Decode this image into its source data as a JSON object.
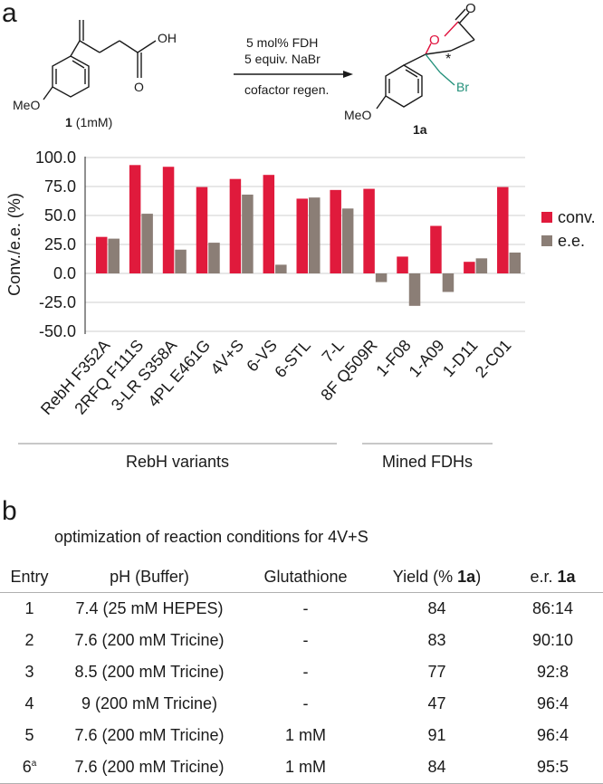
{
  "panel_a": {
    "label": "a",
    "scheme": {
      "substrate_name": "1",
      "substrate_conc": "(1mM)",
      "substrate_groups": {
        "oh": "OH",
        "meo": "MeO",
        "o": "O"
      },
      "product_name": "1a",
      "product_groups": {
        "meo": "MeO",
        "ring_o": "O",
        "carbonyl_o": "O",
        "br": "Br",
        "stereo": "*"
      },
      "conditions": [
        "5 mol% FDH",
        "5 equiv. NaBr",
        "cofactor regen."
      ],
      "colors": {
        "ring_oxygen": "#e0113c",
        "bromomethyl": "#23907a"
      }
    }
  },
  "chart_data": {
    "type": "bar",
    "categories": [
      "RebH F352A",
      "2RFQ F111S",
      "3-LR S358A",
      "4PL E461G",
      "4V+S",
      "6-VS",
      "6-STL",
      "7-L",
      "8F Q509R",
      "1-F08",
      "1-A09",
      "1-D11",
      "2-C01"
    ],
    "series": [
      {
        "name": "conv.",
        "color": "#e01a3c",
        "values": [
          31.5,
          93.5,
          92,
          74.5,
          81.5,
          85,
          64.5,
          72,
          73,
          14.5,
          41,
          10,
          74.5
        ]
      },
      {
        "name": "e.e.",
        "color": "#8b7e76",
        "values": [
          30,
          51.5,
          20.5,
          26.5,
          68,
          7.5,
          65.5,
          56,
          -7.5,
          -28,
          -16,
          13,
          18
        ]
      }
    ],
    "ylabel": "Conv./e.e. (%)",
    "ylim": [
      -50,
      100
    ],
    "yticks": [
      "100.0",
      "75.0",
      "50.0",
      "25.0",
      "0.0",
      "-25.0",
      "-50.0"
    ],
    "grid": true,
    "legend_position": "right",
    "groups": [
      {
        "label": "RebH variants",
        "categories": [
          "RebH F352A",
          "2RFQ F111S",
          "3-LR S358A",
          "4PL E461G",
          "4V+S",
          "6-VS",
          "6-STL",
          "7-L"
        ]
      },
      {
        "label": "Mined FDHs",
        "categories": [
          "1-F08",
          "1-A09",
          "1-D11",
          "2-C01"
        ]
      }
    ]
  },
  "panel_b": {
    "label": "b",
    "title": "optimization of reaction conditions for 4V+S",
    "headers": {
      "entry": "Entry",
      "ph": "pH (Buffer)",
      "glutathione": "Glutathione",
      "yield_prefix": "Yield (% ",
      "yield_bold": "1a",
      "yield_suffix": ")",
      "er_prefix": "e.r. ",
      "er_bold": "1a"
    },
    "rows": [
      {
        "entry": "1",
        "sup": "",
        "ph": "7.4 (25 mM HEPES)",
        "glutathione": "-",
        "yield": "84",
        "er": "86:14"
      },
      {
        "entry": "2",
        "sup": "",
        "ph": "7.6 (200 mM Tricine)",
        "glutathione": "-",
        "yield": "83",
        "er": "90:10"
      },
      {
        "entry": "3",
        "sup": "",
        "ph": "8.5 (200 mM Tricine)",
        "glutathione": "-",
        "yield": "77",
        "er": "92:8"
      },
      {
        "entry": "4",
        "sup": "",
        "ph": "9 (200 mM Tricine)",
        "glutathione": "-",
        "yield": "47",
        "er": "96:4"
      },
      {
        "entry": "5",
        "sup": "",
        "ph": "7.6 (200 mM Tricine)",
        "glutathione": "1 mM",
        "yield": "91",
        "er": "96:4"
      },
      {
        "entry": "6",
        "sup": "a",
        "ph": "7.6 (200 mM Tricine)",
        "glutathione": "1 mM",
        "yield": "84",
        "er": "95:5"
      }
    ]
  }
}
